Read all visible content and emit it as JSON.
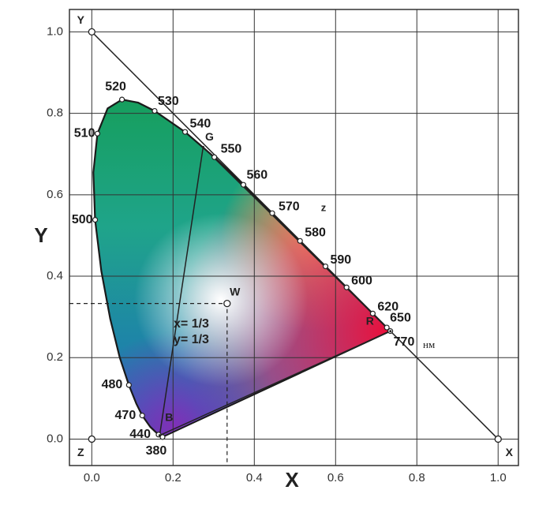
{
  "chart_data": {
    "type": "line",
    "xlabel": "X",
    "ylabel": "Y",
    "xlim": [
      -0.055,
      1.05
    ],
    "ylim": [
      -0.065,
      1.055
    ],
    "xticks": [
      {
        "value": 0,
        "label": "0.0"
      },
      0.2,
      0.4,
      0.6,
      0.8,
      {
        "value": 1,
        "label": "1.0"
      }
    ],
    "yticks": [
      {
        "value": 0,
        "label": "0.0"
      },
      0.2,
      0.4,
      0.6,
      0.8,
      {
        "value": 1,
        "label": "1.0"
      }
    ],
    "grid": true,
    "series": [
      {
        "color": "#1a1a1a",
        "x": [
          0.1741,
          0.1644,
          0.1566,
          0.144,
          0.1241,
          0.1096,
          0.0913,
          0.0687,
          0.0454,
          0.0235,
          0.0082,
          0.0039,
          0.0139,
          0.0389,
          0.0743,
          0.1142,
          0.1547,
          0.2296,
          0.3016,
          0.3731,
          0.4441,
          0.5125,
          0.5752,
          0.627,
          0.6915,
          0.726,
          0.7347
        ],
        "values": [
          0.005,
          0.0109,
          0.0177,
          0.0297,
          0.0578,
          0.0868,
          0.1327,
          0.2007,
          0.295,
          0.4127,
          0.5384,
          0.6548,
          0.7502,
          0.812,
          0.8338,
          0.8262,
          0.8059,
          0.7543,
          0.6923,
          0.6245,
          0.5547,
          0.4866,
          0.4242,
          0.3725,
          0.3083,
          0.274,
          0.2653
        ],
        "labels": [
          "380",
          "440",
          null,
          null,
          "470",
          null,
          "480",
          null,
          null,
          null,
          "500",
          null,
          "510",
          null,
          "520",
          null,
          "530",
          "540",
          "550",
          "560",
          "570",
          "580",
          "590",
          "600",
          "620",
          "650",
          "770"
        ]
      }
    ],
    "points": [
      {
        "label": "Y",
        "x": 0,
        "y": 1
      },
      {
        "label": "X",
        "x": 1,
        "y": 0
      },
      {
        "label": "Z",
        "x": 0,
        "y": 0
      },
      {
        "label": "W",
        "x": 0.333,
        "y": 0.333
      },
      {
        "label": "R",
        "x": 0.735,
        "y": 0.265
      },
      {
        "label": "G",
        "x": 0.274,
        "y": 0.717
      },
      {
        "label": "B",
        "x": 0.167,
        "y": 0.009
      }
    ],
    "annotations": [
      "x= 1/3",
      "y= 1/3",
      "z",
      "нм"
    ]
  }
}
